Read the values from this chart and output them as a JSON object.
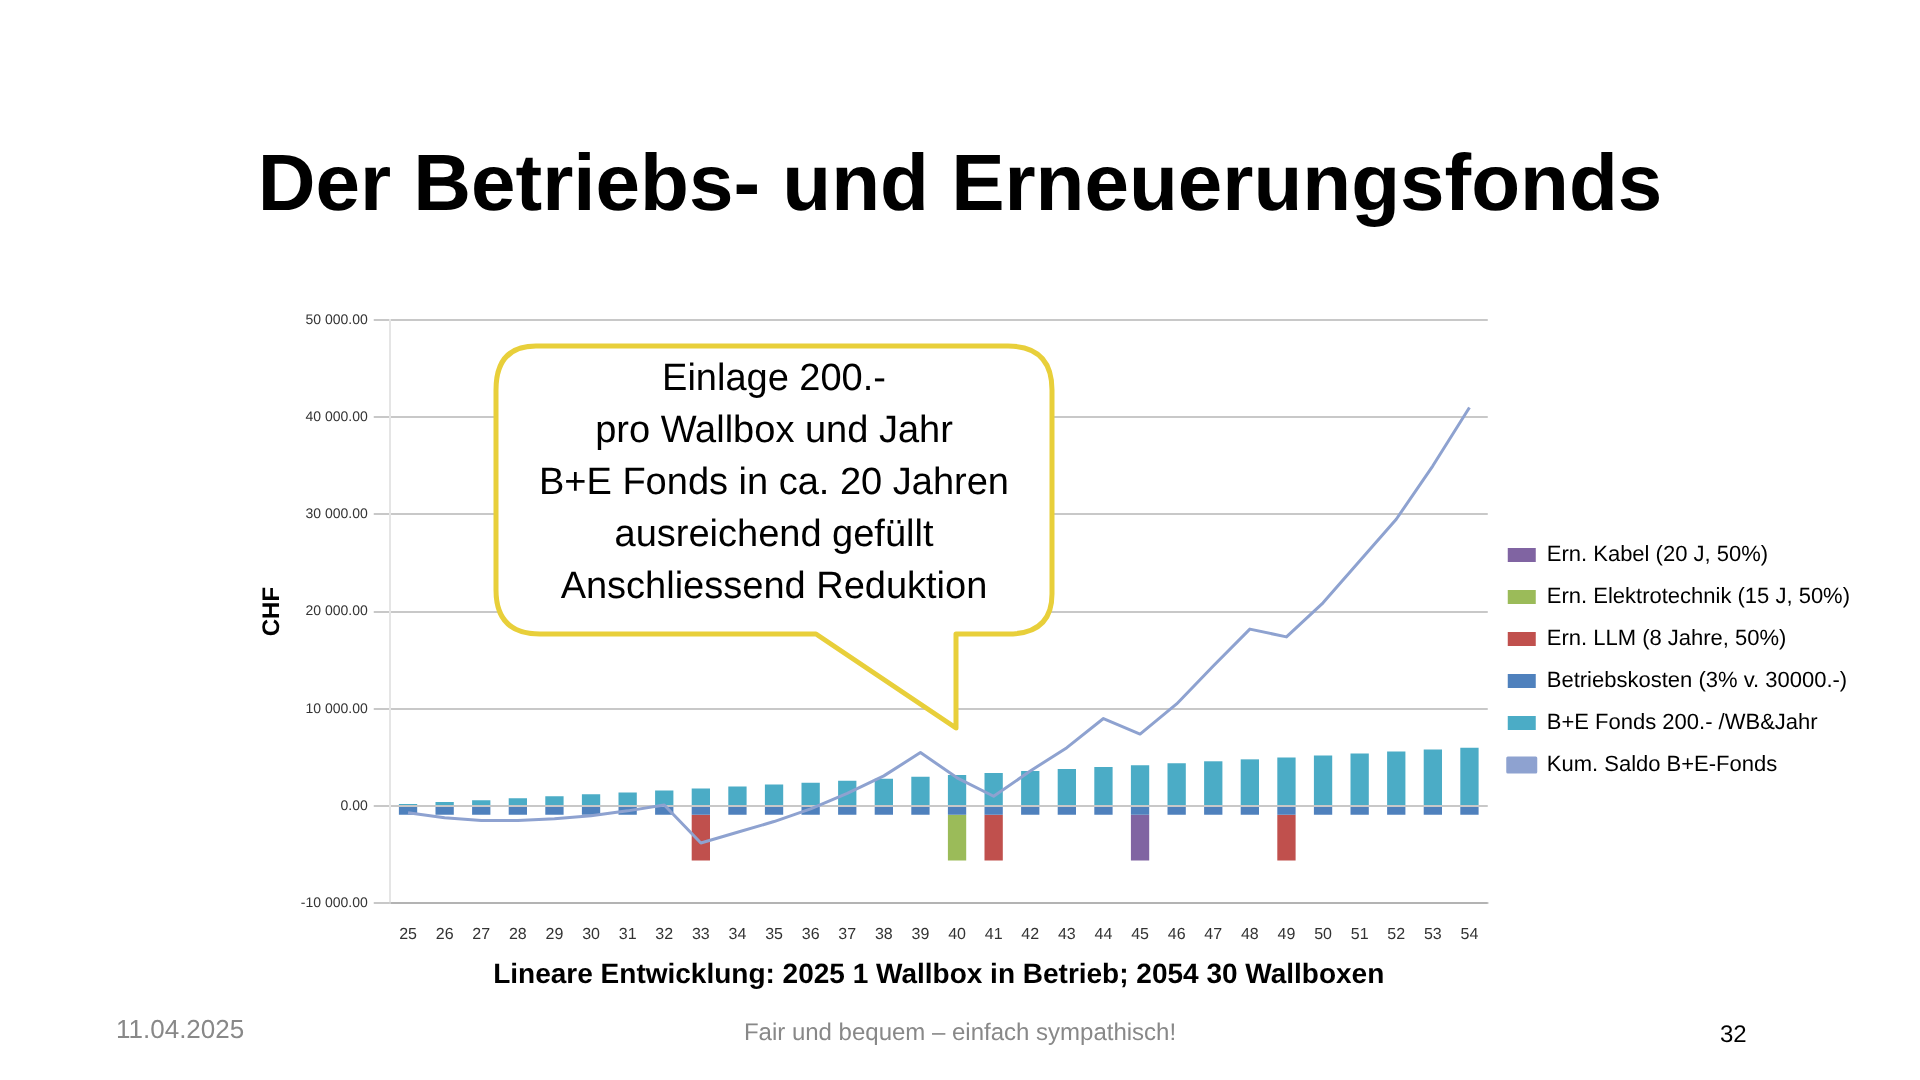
{
  "chart_data": {
    "type": "bar",
    "title": "Der Betriebs- und Erneuerungsfonds",
    "xlabel": "Lineare Entwicklung: 2025 1 Wallbox in Betrieb; 2054 30 Wallboxen",
    "ylabel": "CHF",
    "categories": [
      "25",
      "26",
      "27",
      "28",
      "29",
      "30",
      "31",
      "32",
      "33",
      "34",
      "35",
      "36",
      "37",
      "38",
      "39",
      "40",
      "41",
      "42",
      "43",
      "44",
      "45",
      "46",
      "47",
      "48",
      "49",
      "50",
      "51",
      "52",
      "53",
      "54"
    ],
    "stacked": true,
    "series": [
      {
        "name": "B+E Fonds 200.- /WB&Jahr",
        "color": "#4bacc6",
        "values": [
          200,
          400,
          600,
          800,
          1000,
          1200,
          1400,
          1600,
          1800,
          2000,
          2200,
          2400,
          2600,
          2800,
          3000,
          3200,
          3400,
          3600,
          3800,
          4000,
          4200,
          4400,
          4600,
          4800,
          5000,
          5200,
          5400,
          5600,
          5800,
          6000
        ]
      },
      {
        "name": "Betriebskosten (3% v. 30000.-)",
        "color": "#4f81bd",
        "values": [
          -900,
          -900,
          -900,
          -900,
          -900,
          -900,
          -900,
          -900,
          -900,
          -900,
          -900,
          -900,
          -900,
          -900,
          -900,
          -900,
          -900,
          -900,
          -900,
          -900,
          -900,
          -900,
          -900,
          -900,
          -900,
          -900,
          -900,
          -900,
          -900,
          -900
        ]
      },
      {
        "name": "Ern. LLM (8 Jahre, 50%)",
        "color": "#c0504d",
        "values": [
          null,
          null,
          null,
          null,
          null,
          null,
          null,
          null,
          -4700,
          null,
          null,
          null,
          null,
          null,
          null,
          null,
          -4700,
          null,
          null,
          null,
          null,
          null,
          null,
          null,
          -4700,
          null,
          null,
          null,
          null,
          null
        ]
      },
      {
        "name": "Ern. Elektrotechnik (15 J, 50%)",
        "color": "#9bbb59",
        "values": [
          null,
          null,
          null,
          null,
          null,
          null,
          null,
          null,
          null,
          null,
          null,
          null,
          null,
          null,
          null,
          -4700,
          null,
          null,
          null,
          null,
          null,
          null,
          null,
          null,
          null,
          null,
          null,
          null,
          null,
          null
        ]
      },
      {
        "name": "Ern. Kabel (20 J, 50%)",
        "color": "#8064a2",
        "values": [
          null,
          null,
          null,
          null,
          null,
          null,
          null,
          null,
          null,
          null,
          null,
          null,
          null,
          null,
          null,
          null,
          null,
          null,
          null,
          null,
          -4700,
          null,
          null,
          null,
          null,
          null,
          null,
          null,
          null,
          null
        ]
      },
      {
        "name": "Kum. Saldo B+E-Fonds",
        "type": "line",
        "color": "#8ea2d0",
        "values": [
          -700,
          -1200,
          -1500,
          -1500,
          -1300,
          -1000,
          -500,
          100,
          -3800,
          -2700,
          -1600,
          -300,
          1300,
          3100,
          5500,
          2900,
          1000,
          3600,
          6000,
          9000,
          7400,
          10500,
          14400,
          18200,
          17400,
          20900,
          25200,
          29500,
          35000,
          41000
        ]
      }
    ],
    "ylim": [
      -10000,
      50000
    ],
    "yticks": [
      {
        "value": -10000,
        "label": "-10 000.00"
      },
      {
        "value": 0,
        "label": "0.00"
      },
      {
        "value": 10000,
        "label": "10 000.00"
      },
      {
        "value": 20000,
        "label": "20 000.00"
      },
      {
        "value": 30000,
        "label": "30 000.00"
      },
      {
        "value": 40000,
        "label": "40 000.00"
      },
      {
        "value": 50000,
        "label": "50 000.00"
      }
    ],
    "grid": "y",
    "legend": "right",
    "marker": "none",
    "line_style": "solid",
    "annotations": [
      "Einlage 200.-\npro Wallbox und Jahr\nB+E Fonds in ca. 20 Jahren\nausreichend gefüllt\nAnschliessend Reduktion",
      "11.04.2025",
      "Fair und bequem – einfach sympathisch!",
      "32"
    ]
  }
}
